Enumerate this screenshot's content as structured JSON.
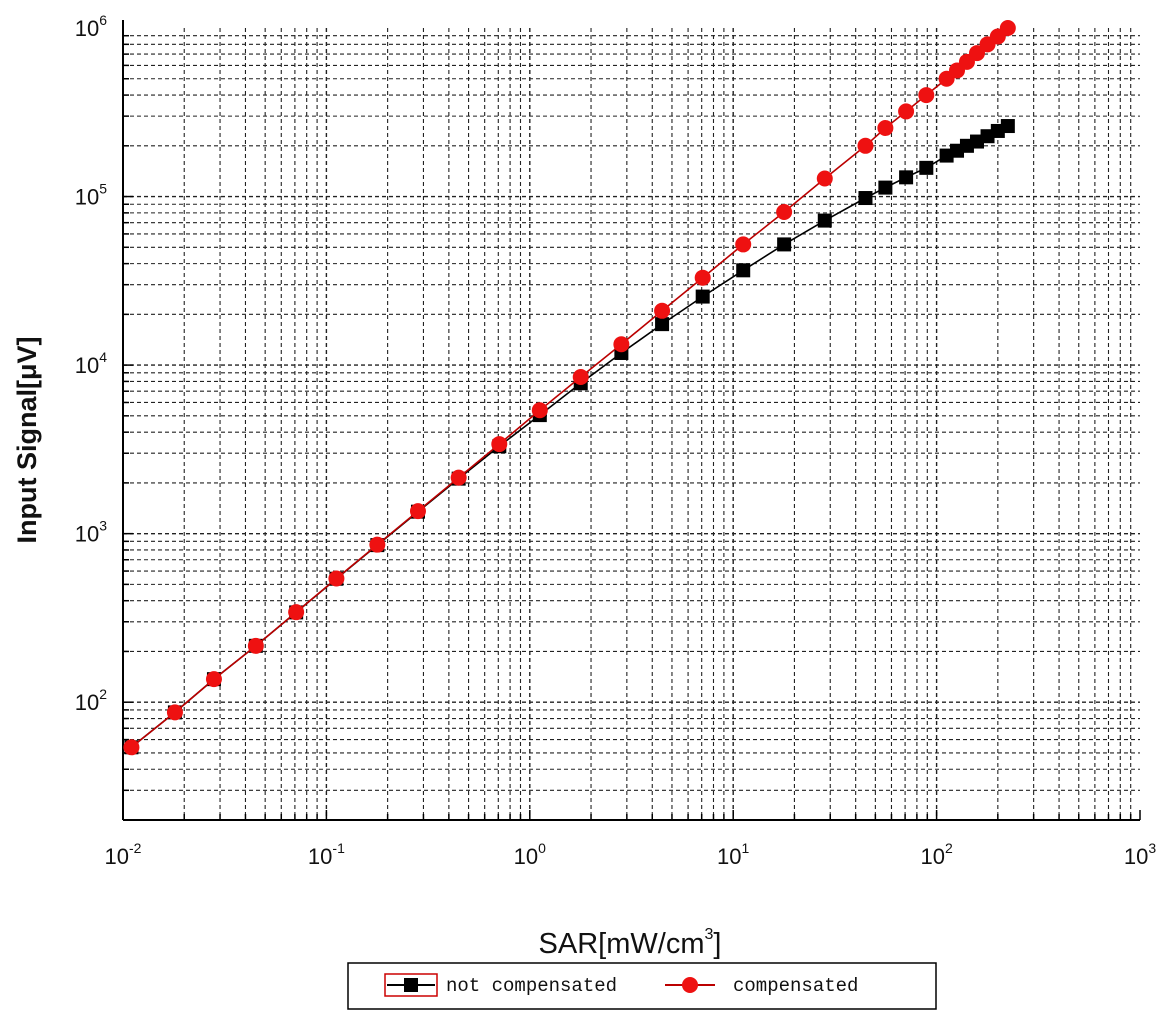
{
  "chart_data": {
    "type": "line",
    "title": "",
    "xlabel": "SAR[mW/cm",
    "xlabel_sup": "3",
    "xlabel_close": "]",
    "ylabel": "Input Signal[μV]",
    "x_scale": "log",
    "y_scale": "log",
    "xlim": [
      0.01,
      1000
    ],
    "ylim": [
      20,
      1000000
    ],
    "grid": true,
    "legend_position": "bottom",
    "x_ticks": [
      {
        "base": "10",
        "exp": "-2",
        "value": 0.01
      },
      {
        "base": "10",
        "exp": "-1",
        "value": 0.1
      },
      {
        "base": "10",
        "exp": "0",
        "value": 1
      },
      {
        "base": "10",
        "exp": "1",
        "value": 10
      },
      {
        "base": "10",
        "exp": "2",
        "value": 100
      },
      {
        "base": "10",
        "exp": "3",
        "value": 1000
      }
    ],
    "y_ticks": [
      {
        "base": "10",
        "exp": "2",
        "value": 100
      },
      {
        "base": "10",
        "exp": "3",
        "value": 1000
      },
      {
        "base": "10",
        "exp": "4",
        "value": 10000
      },
      {
        "base": "10",
        "exp": "5",
        "value": 100000
      },
      {
        "base": "10",
        "exp": "6",
        "value": 1000000
      }
    ],
    "series": [
      {
        "name": "not compensated",
        "color": "#000000",
        "marker": "square",
        "x": [
          0.011,
          0.018,
          0.028,
          0.045,
          0.071,
          0.112,
          0.178,
          0.282,
          0.447,
          0.708,
          1.12,
          1.78,
          2.82,
          4.47,
          7.08,
          11.2,
          17.8,
          28.2,
          44.7,
          56,
          70.8,
          89,
          112,
          126,
          141,
          158,
          178,
          200,
          224
        ],
        "y": [
          54,
          87,
          137,
          216,
          341,
          540,
          855,
          1350,
          2120,
          3300,
          5050,
          7800,
          11800,
          17500,
          25500,
          36500,
          52000,
          72000,
          98000,
          113000,
          130000,
          148000,
          175000,
          187000,
          200000,
          212000,
          228000,
          245000,
          262000
        ]
      },
      {
        "name": "compensated",
        "color": "#ee1111",
        "marker": "circle",
        "x": [
          0.011,
          0.018,
          0.028,
          0.045,
          0.071,
          0.112,
          0.178,
          0.282,
          0.447,
          0.708,
          1.12,
          1.78,
          2.82,
          4.47,
          7.08,
          11.2,
          17.8,
          28.2,
          44.7,
          56,
          70.8,
          89,
          112,
          126,
          141,
          158,
          178,
          200,
          224
        ],
        "y": [
          54,
          87,
          137,
          216,
          342,
          542,
          860,
          1360,
          2150,
          3400,
          5400,
          8500,
          13300,
          21000,
          33000,
          52000,
          81000,
          128000,
          200000,
          255000,
          320000,
          400000,
          500000,
          560000,
          630000,
          710000,
          800000,
          890000,
          1000000
        ]
      }
    ]
  }
}
